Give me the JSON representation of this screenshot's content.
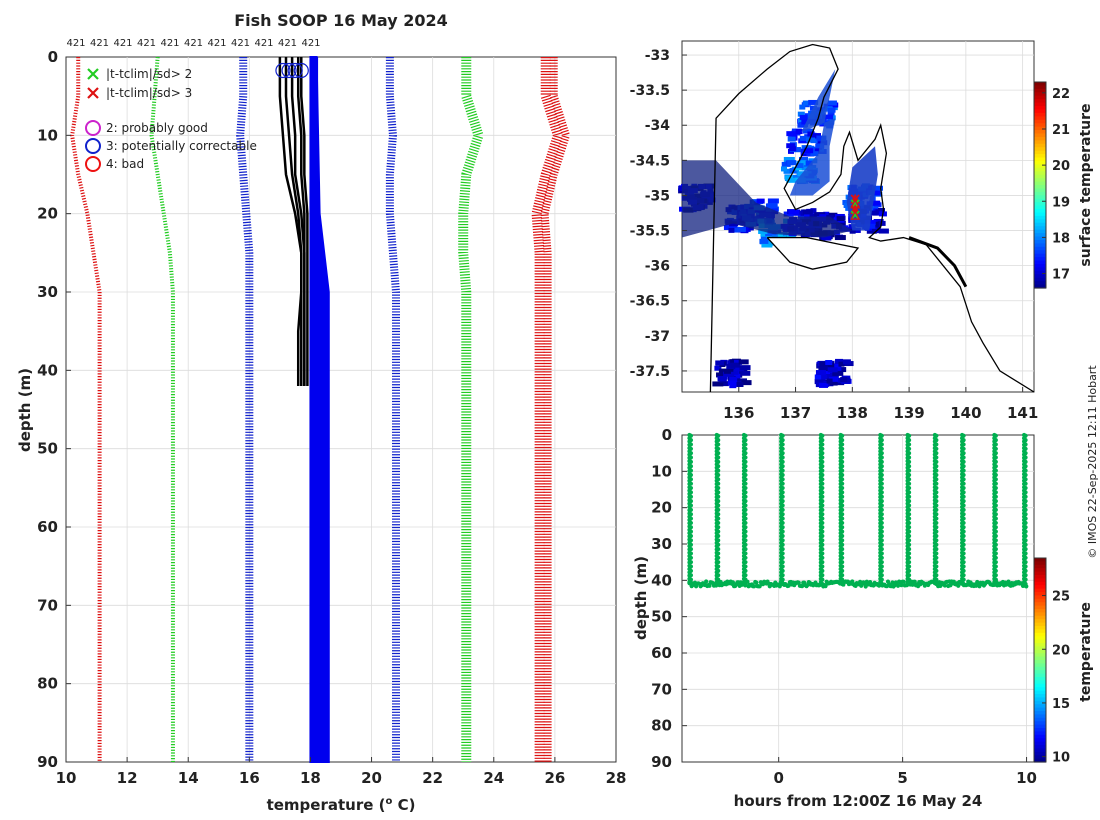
{
  "figure": {
    "credit": "© IMOS 22-Sep-2025 12:11 Hobart"
  },
  "chart_data": [
    {
      "type": "line",
      "name": "profile",
      "title": "Fish SOOP 16 May 2024",
      "xlabel": "temperature (",
      "xlabel_sup": "o",
      "xlabel_tail": " C)",
      "ylabel": "depth (m)",
      "xlim": [
        10,
        28
      ],
      "ylim": [
        0,
        90
      ],
      "y_reversed": true,
      "xticks": [
        10,
        12,
        14,
        16,
        18,
        20,
        22,
        24,
        26,
        28
      ],
      "yticks": [
        0,
        10,
        20,
        30,
        40,
        50,
        60,
        70,
        80,
        90
      ],
      "grid": true,
      "top_labels": [
        "421",
        "421",
        "421",
        "421",
        "421",
        "421",
        "421",
        "421",
        "421",
        "421",
        "421"
      ],
      "legend": {
        "position": "top-left",
        "entries": [
          {
            "marker": "x",
            "color": "#22cc22",
            "label": "|t-tclim|/sd> 2"
          },
          {
            "marker": "x",
            "color": "#dd1111",
            "label": "|t-tclim|/sd> 3"
          },
          {
            "marker": "o",
            "color": "#cc22cc",
            "label": "2: probably good"
          },
          {
            "marker": "o",
            "color": "#1122cc",
            "label": "3: potentially correctable"
          },
          {
            "marker": "o",
            "color": "#ee1111",
            "label": "4: bad"
          }
        ]
      },
      "climatology_depths": [
        0,
        5,
        10,
        15,
        20,
        25,
        30,
        90
      ],
      "climatology": [
        {
          "name": "clim -3sd",
          "color": "#dd1111",
          "values": [
            10.4,
            10.4,
            10.2,
            10.4,
            10.7,
            10.9,
            11.1,
            11.1
          ]
        },
        {
          "name": "clim -2sd",
          "color": "#22cc22",
          "values": [
            13.0,
            12.9,
            12.8,
            13.0,
            13.2,
            13.4,
            13.5,
            13.5
          ]
        },
        {
          "name": "clim mean",
          "color": "#1122cc",
          "values": [
            15.8,
            15.8,
            15.7,
            15.8,
            15.9,
            16.0,
            16.0,
            16.0
          ]
        },
        {
          "name": "clim +1sd",
          "color": "#1122cc",
          "values": [
            20.6,
            20.6,
            20.7,
            20.6,
            20.6,
            20.7,
            20.8,
            20.8
          ]
        },
        {
          "name": "clim +2sd",
          "color": "#22cc22",
          "values": [
            23.1,
            23.1,
            23.5,
            23.1,
            23.0,
            23.0,
            23.1,
            23.1
          ]
        },
        {
          "name": "clim +3sd",
          "color": "#dd1111",
          "values": [
            25.7,
            25.7,
            26.1,
            25.7,
            25.4,
            25.5,
            25.5,
            25.5
          ]
        }
      ],
      "blue_band": {
        "depths": [
          0,
          20,
          30,
          90
        ],
        "left": [
          18.0,
          18.0,
          18.0,
          18.0
        ],
        "right": [
          18.2,
          18.3,
          18.6,
          18.6
        ]
      },
      "profiles": {
        "color": "#000000",
        "depths": [
          0,
          5,
          10,
          15,
          20,
          25,
          30,
          35,
          40,
          42
        ],
        "series": [
          {
            "name": "p1",
            "values": [
              17.0,
              17.0,
              17.1,
              17.2,
              17.5,
              17.7,
              17.7,
              17.6,
              17.6,
              17.6
            ]
          },
          {
            "name": "p2",
            "values": [
              17.2,
              17.2,
              17.3,
              17.4,
              17.6,
              17.7,
              17.7,
              17.7,
              17.7,
              17.7
            ]
          },
          {
            "name": "p3",
            "values": [
              17.4,
              17.4,
              17.5,
              17.5,
              17.7,
              17.8,
              17.8,
              17.8,
              17.8,
              17.8
            ]
          },
          {
            "name": "p4",
            "values": [
              17.6,
              17.6,
              17.7,
              17.7,
              17.8,
              17.8,
              17.8,
              17.8,
              17.8,
              17.8
            ]
          },
          {
            "name": "p5",
            "values": [
              17.7,
              17.7,
              17.8,
              17.8,
              17.9,
              17.9,
              17.9,
              17.9,
              17.9,
              17.9
            ]
          }
        ]
      },
      "surface_flags": {
        "marker": "o",
        "color": "#1122cc",
        "x": [
          17.1,
          17.3,
          17.5,
          17.7
        ],
        "depth": 0.7
      }
    },
    {
      "type": "heatmap",
      "name": "map",
      "xlim": [
        135,
        141.2
      ],
      "ylim": [
        -37.8,
        -32.8
      ],
      "xticks": [
        136,
        137,
        138,
        139,
        140,
        141
      ],
      "yticks": [
        -33,
        -33.5,
        -34,
        -34.5,
        -35,
        -35.5,
        -36,
        -36.5,
        -37,
        -37.5
      ],
      "xtick_labels": [
        "136",
        "137",
        "138",
        "139",
        "140",
        "141"
      ],
      "ytick_labels": [
        "-33",
        "-33.5",
        "-34",
        "-34.5",
        "-35",
        "-35.5",
        "-36",
        "-36.5",
        "-37",
        "-37.5"
      ],
      "colorbar": {
        "label": "surface temperature",
        "range": [
          16.6,
          22.3
        ],
        "ticks": [
          17,
          18,
          19,
          20,
          21,
          22
        ],
        "tick_labels": [
          "17",
          "18",
          "19",
          "20",
          "21",
          "22"
        ]
      },
      "coastline": [
        [
          135.5,
          -37.8
        ],
        [
          135.6,
          -33.9
        ],
        [
          136.0,
          -33.55
        ],
        [
          136.5,
          -33.2
        ],
        [
          136.9,
          -32.95
        ],
        [
          137.3,
          -32.85
        ],
        [
          137.6,
          -32.9
        ],
        [
          137.75,
          -33.2
        ],
        [
          137.5,
          -33.6
        ],
        [
          137.4,
          -33.9
        ],
        [
          137.2,
          -34.3
        ],
        [
          137.0,
          -34.6
        ],
        [
          136.8,
          -34.9
        ],
        [
          137.0,
          -35.2
        ],
        [
          137.3,
          -35.1
        ],
        [
          137.6,
          -34.95
        ],
        [
          137.8,
          -34.7
        ],
        [
          137.85,
          -34.3
        ],
        [
          137.95,
          -34.1
        ],
        [
          138.1,
          -34.5
        ],
        [
          138.4,
          -34.2
        ],
        [
          138.5,
          -34.0
        ],
        [
          138.6,
          -34.4
        ],
        [
          138.5,
          -34.9
        ],
        [
          138.55,
          -35.2
        ],
        [
          138.5,
          -35.45
        ],
        [
          138.3,
          -35.6
        ],
        [
          138.5,
          -35.65
        ],
        [
          138.9,
          -35.6
        ],
        [
          139.3,
          -35.7
        ],
        [
          139.9,
          -36.3
        ],
        [
          140.1,
          -36.8
        ],
        [
          140.3,
          -37.1
        ],
        [
          140.6,
          -37.5
        ],
        [
          141.2,
          -37.8
        ]
      ],
      "island": [
        [
          136.5,
          -35.6
        ],
        [
          137.2,
          -35.6
        ],
        [
          137.8,
          -35.7
        ],
        [
          138.1,
          -35.75
        ],
        [
          137.9,
          -35.95
        ],
        [
          137.3,
          -36.05
        ],
        [
          136.9,
          -35.95
        ],
        [
          136.5,
          -35.6
        ]
      ],
      "sst_patches": [
        {
          "lon": 136.0,
          "lat": -35.3,
          "value": 17.3
        },
        {
          "lon": 136.3,
          "lat": -35.2,
          "value": 17.6
        },
        {
          "lon": 136.6,
          "lat": -35.5,
          "value": 18.1
        },
        {
          "lon": 137.0,
          "lat": -35.35,
          "value": 17.2
        },
        {
          "lon": 137.5,
          "lat": -35.4,
          "value": 17.0
        },
        {
          "lon": 137.1,
          "lat": -34.2,
          "value": 17.5
        },
        {
          "lon": 137.3,
          "lat": -33.8,
          "value": 17.7
        },
        {
          "lon": 137.0,
          "lat": -34.6,
          "value": 18.0
        },
        {
          "lon": 138.1,
          "lat": -35.0,
          "value": 17.6
        },
        {
          "lon": 138.2,
          "lat": -35.3,
          "value": 17.1
        },
        {
          "lon": 135.2,
          "lat": -35.0,
          "value": 17.0
        },
        {
          "lon": 135.8,
          "lat": -37.5,
          "value": 16.9
        },
        {
          "lon": 137.6,
          "lat": -37.5,
          "value": 17.0
        }
      ],
      "track_markers": {
        "color": "#dd1111",
        "green_color": "#22cc22",
        "lon": 138.05,
        "lat": [
          -35.05,
          -35.12,
          -35.2,
          -35.28
        ]
      }
    },
    {
      "type": "scatter",
      "name": "timeseries",
      "xlabel": "hours from 12:00Z 16 May 24",
      "ylabel": "depth (m)",
      "xlim": [
        -3.9,
        10.3
      ],
      "ylim": [
        0,
        90
      ],
      "y_reversed": true,
      "xticks": [
        0,
        5,
        10
      ],
      "xtick_labels": [
        "0",
        "5",
        "10"
      ],
      "yticks": [
        0,
        10,
        20,
        30,
        40,
        50,
        60,
        70,
        80,
        90
      ],
      "ytick_labels": [
        "0",
        "10",
        "20",
        "30",
        "40",
        "50",
        "60",
        "70",
        "80",
        "90"
      ],
      "bottom_depth": 41,
      "cast_times": [
        -3.6,
        -2.5,
        -1.4,
        0.1,
        1.7,
        2.5,
        4.1,
        5.2,
        6.3,
        7.4,
        8.7,
        9.9
      ],
      "point_color": "#00b050",
      "colorbar": {
        "label": "temperature",
        "range": [
          9.5,
          28.5
        ],
        "ticks": [
          10,
          15,
          20,
          25
        ],
        "tick_labels": [
          "10",
          "15",
          "20",
          "25"
        ]
      }
    }
  ]
}
